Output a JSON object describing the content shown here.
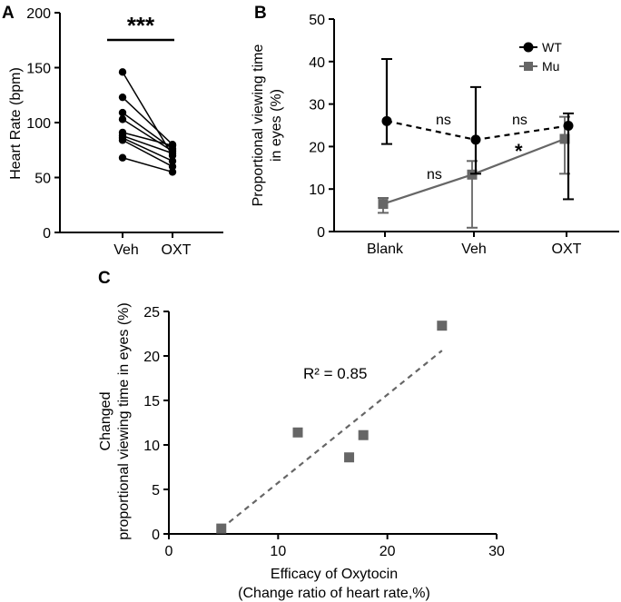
{
  "panels": {
    "a": {
      "letter": "A"
    },
    "b": {
      "letter": "B"
    },
    "c": {
      "letter": "C"
    }
  },
  "colors": {
    "wt": "#000000",
    "mu": "#666666",
    "trend": "#666666",
    "axis": "#000000"
  },
  "chart_data": [
    {
      "id": "A",
      "type": "line",
      "title": "",
      "xlabel": "",
      "ylabel": "Heart Rate (bpm)",
      "categories": [
        "Veh",
        "OXT"
      ],
      "ylim": [
        0,
        200
      ],
      "yticks": [
        "0",
        "50",
        "100",
        "150",
        "200"
      ],
      "grid": false,
      "paired_series": [
        {
          "values": [
            146,
            70
          ]
        },
        {
          "values": [
            123,
            80
          ]
        },
        {
          "values": [
            109,
            76
          ]
        },
        {
          "values": [
            103,
            74
          ]
        },
        {
          "values": [
            91,
            79
          ]
        },
        {
          "values": [
            88,
            72
          ]
        },
        {
          "values": [
            86,
            65
          ]
        },
        {
          "values": [
            84,
            60
          ]
        },
        {
          "values": [
            68,
            55
          ]
        }
      ],
      "annotations": [
        "***"
      ]
    },
    {
      "id": "B",
      "type": "line",
      "title": "",
      "xlabel": "",
      "ylabel": "Proportional viewing time in eyes (%)",
      "categories": [
        "Blank",
        "Veh",
        "OXT"
      ],
      "ylim": [
        0,
        50
      ],
      "yticks": [
        "0",
        "10",
        "20",
        "30",
        "40",
        "50"
      ],
      "grid": false,
      "legend": "top-right",
      "series": [
        {
          "name": "WT",
          "marker": "circle",
          "line": "dashed",
          "values": [
            26.0,
            21.6,
            24.9
          ],
          "err_low": [
            20.6,
            13.6,
            7.6
          ],
          "err_high": [
            40.6,
            34.0,
            27.8
          ]
        },
        {
          "name": "Mu",
          "marker": "square",
          "line": "solid",
          "values": [
            6.5,
            13.4,
            21.8
          ],
          "err_low": [
            4.4,
            0.9,
            13.6
          ],
          "err_high": [
            7.9,
            16.6,
            27.0
          ]
        }
      ],
      "annotations": [
        {
          "text": "ns",
          "near": "WT Blank-Veh"
        },
        {
          "text": "ns",
          "near": "WT Veh-OXT"
        },
        {
          "text": "ns",
          "near": "Mu Blank-Veh"
        },
        {
          "text": "*",
          "near": "Mu Veh-OXT"
        }
      ]
    },
    {
      "id": "C",
      "type": "scatter",
      "title": "",
      "xlabel": "Efficacy of Oxytocin (Change ratio of heart rate,%)",
      "xlabel_lines": [
        "Efficacy of Oxytocin",
        "(Change ratio of heart rate,%)"
      ],
      "ylabel": "Changed proportional viewing time in eyes (%)",
      "ylabel_lines": [
        "Changed",
        "proportional viewing time in eyes (%)"
      ],
      "xlim": [
        0,
        30
      ],
      "ylim": [
        0,
        25
      ],
      "xticks": [
        "0",
        "10",
        "20",
        "30"
      ],
      "yticks": [
        "0",
        "5",
        "10",
        "15",
        "20",
        "25"
      ],
      "grid": false,
      "points": [
        {
          "x": 4.8,
          "y": 0.6
        },
        {
          "x": 11.8,
          "y": 11.4
        },
        {
          "x": 16.5,
          "y": 8.6
        },
        {
          "x": 17.8,
          "y": 11.1
        },
        {
          "x": 25.0,
          "y": 23.4
        }
      ],
      "trendline": {
        "x": [
          4.8,
          25.0
        ],
        "y": [
          0.6,
          20.6
        ]
      },
      "annotation": "R² = 0.85"
    }
  ]
}
